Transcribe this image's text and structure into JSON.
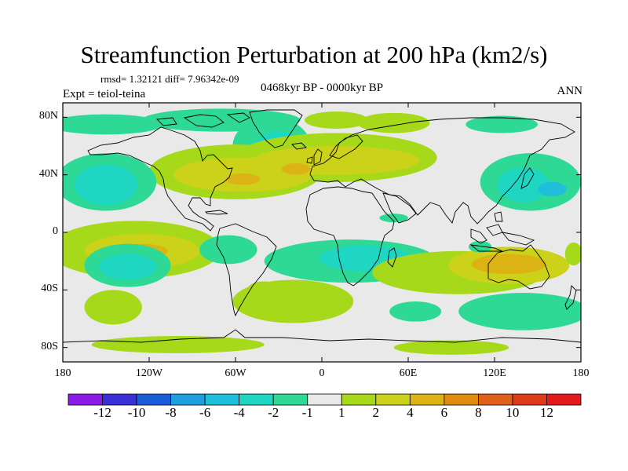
{
  "title": "Streamfunction Perturbation at 200 hPa (km2/s)",
  "stats_line": "rmsd= 1.32121  diff= 7.96342e-09",
  "experiment_label": "Expt = teiol-teina",
  "period_label": "0468kyr BP - 0000kyr BP",
  "season_label": "ANN",
  "chart_data": {
    "type": "heatmap",
    "title": "Streamfunction Perturbation at 200 hPa (km2/s)",
    "x_axis": {
      "range": [
        -180,
        180
      ],
      "tick_values": [
        -180,
        -120,
        -60,
        0,
        60,
        120,
        180
      ],
      "tick_labels": [
        "180",
        "120W",
        "60W",
        "0",
        "60E",
        "120E",
        "180"
      ]
    },
    "y_axis": {
      "range": [
        -90,
        90
      ],
      "tick_values": [
        80,
        40,
        0,
        -40,
        -80
      ],
      "tick_labels": [
        "80N",
        "40N",
        "0",
        "40S",
        "80S"
      ]
    },
    "colorbar": {
      "levels": [
        "-12",
        "-10",
        "-8",
        "-6",
        "-4",
        "-2",
        "-1",
        "1",
        "2",
        "4",
        "6",
        "8",
        "10",
        "12"
      ],
      "colors": [
        "#8a1ae6",
        "#3b2fd6",
        "#1a5fd9",
        "#1f9ee0",
        "#1fbfdc",
        "#1ed6c2",
        "#2ed996",
        "#e9e9e9",
        "#a6d91a",
        "#ccd219",
        "#dcb314",
        "#e08a10",
        "#e0621a",
        "#dd3a1a",
        "#e3191b"
      ]
    },
    "background_color": "#e9e9e9",
    "anomaly_regions": [
      {
        "lon": -150,
        "lat": 75,
        "rx": 40,
        "ry": 7,
        "color": "#2ed996"
      },
      {
        "lon": -70,
        "lat": 78,
        "rx": 55,
        "ry": 8,
        "color": "#2ed996"
      },
      {
        "lon": 10,
        "lat": 78,
        "rx": 22,
        "ry": 6,
        "color": "#a6d91a"
      },
      {
        "lon": 50,
        "lat": 76,
        "rx": 25,
        "ry": 7,
        "color": "#a6d91a"
      },
      {
        "lon": 125,
        "lat": 75,
        "rx": 25,
        "ry": 6,
        "color": "#2ed996"
      },
      {
        "lon": -35,
        "lat": 60,
        "rx": 27,
        "ry": 20,
        "color": "#2ed996"
      },
      {
        "lon": -30,
        "lat": 58,
        "rx": 17,
        "ry": 12,
        "color": "#1ed6c2"
      },
      {
        "lon": -30,
        "lat": 56,
        "rx": 9,
        "ry": 7,
        "color": "#1fbfdc"
      },
      {
        "lon": -60,
        "lat": 42,
        "rx": 60,
        "ry": 19,
        "color": "#a6d91a"
      },
      {
        "lon": 10,
        "lat": 52,
        "rx": 70,
        "ry": 17,
        "color": "#a6d91a"
      },
      {
        "lon": -55,
        "lat": 40,
        "rx": 48,
        "ry": 12,
        "color": "#ccd219"
      },
      {
        "lon": 10,
        "lat": 50,
        "rx": 58,
        "ry": 10,
        "color": "#ccd219"
      },
      {
        "lon": -55,
        "lat": 37,
        "rx": 12,
        "ry": 4,
        "color": "#dcb314"
      },
      {
        "lon": -18,
        "lat": 44,
        "rx": 10,
        "ry": 4,
        "color": "#dcb314"
      },
      {
        "lon": -150,
        "lat": 35,
        "rx": 35,
        "ry": 20,
        "color": "#2ed996"
      },
      {
        "lon": -150,
        "lat": 33,
        "rx": 22,
        "ry": 14,
        "color": "#1ed6c2"
      },
      {
        "lon": 145,
        "lat": 35,
        "rx": 35,
        "ry": 20,
        "color": "#2ed996"
      },
      {
        "lon": 140,
        "lat": 33,
        "rx": 18,
        "ry": 12,
        "color": "#1ed6c2"
      },
      {
        "lon": 160,
        "lat": 30,
        "rx": 10,
        "ry": 5,
        "color": "#1fbfdc"
      },
      {
        "lon": -125,
        "lat": 37,
        "rx": 4,
        "ry": 3,
        "color": "#2ed996"
      },
      {
        "lon": 50,
        "lat": 10,
        "rx": 10,
        "ry": 3,
        "color": "#2ed996"
      },
      {
        "lon": -130,
        "lat": -12,
        "rx": 60,
        "ry": 20,
        "color": "#a6d91a"
      },
      {
        "lon": -125,
        "lat": -13,
        "rx": 40,
        "ry": 12,
        "color": "#ccd219"
      },
      {
        "lon": -125,
        "lat": -13,
        "rx": 18,
        "ry": 5,
        "color": "#dcb314"
      },
      {
        "lon": -135,
        "lat": -23,
        "rx": 30,
        "ry": 15,
        "color": "#2ed996"
      },
      {
        "lon": -135,
        "lat": -24,
        "rx": 20,
        "ry": 9,
        "color": "#1ed6c2"
      },
      {
        "lon": -65,
        "lat": -12,
        "rx": 20,
        "ry": 10,
        "color": "#2ed996"
      },
      {
        "lon": 20,
        "lat": -20,
        "rx": 60,
        "ry": 15,
        "color": "#2ed996"
      },
      {
        "lon": 30,
        "lat": -18,
        "rx": 32,
        "ry": 9,
        "color": "#1ed6c2"
      },
      {
        "lon": 95,
        "lat": -28,
        "rx": 60,
        "ry": 15,
        "color": "#a6d91a"
      },
      {
        "lon": 130,
        "lat": -23,
        "rx": 42,
        "ry": 13,
        "color": "#ccd219"
      },
      {
        "lon": 130,
        "lat": -22,
        "rx": 26,
        "ry": 7,
        "color": "#dcb314"
      },
      {
        "lon": 110,
        "lat": -10,
        "rx": 8,
        "ry": 4,
        "color": "#2ed996"
      },
      {
        "lon": 175,
        "lat": -15,
        "rx": 6,
        "ry": 8,
        "color": "#a6d91a"
      },
      {
        "lon": -40,
        "lat": -40,
        "rx": 12,
        "ry": 6,
        "color": "#a6d91a"
      },
      {
        "lon": -20,
        "lat": -48,
        "rx": 42,
        "ry": 15,
        "color": "#a6d91a"
      },
      {
        "lon": -145,
        "lat": -52,
        "rx": 20,
        "ry": 12,
        "color": "#a6d91a"
      },
      {
        "lon": 140,
        "lat": -55,
        "rx": 45,
        "ry": 13,
        "color": "#2ed996"
      },
      {
        "lon": 65,
        "lat": -55,
        "rx": 18,
        "ry": 7,
        "color": "#2ed996"
      },
      {
        "lon": -100,
        "lat": -78,
        "rx": 60,
        "ry": 6,
        "color": "#a6d91a"
      },
      {
        "lon": 90,
        "lat": -80,
        "rx": 40,
        "ry": 5,
        "color": "#a6d91a"
      }
    ]
  }
}
